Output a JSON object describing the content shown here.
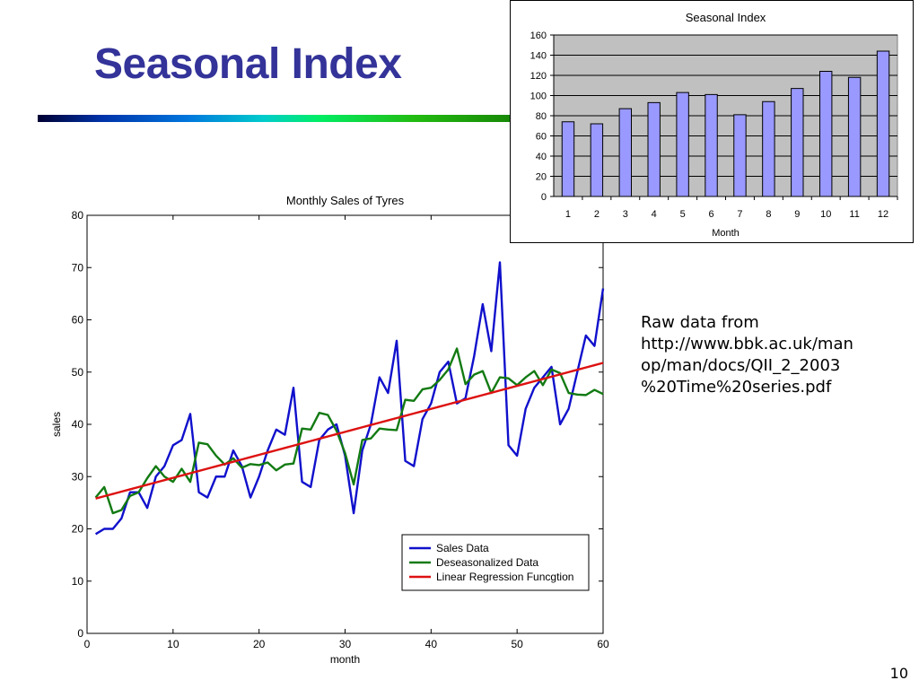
{
  "slide": {
    "title": "Seasonal Index",
    "source_lines": [
      "Raw data from",
      "http://www.bbk.ac.uk/man",
      "op/man/docs/QII_2_2003",
      "%20Time%20series.pdf"
    ],
    "page_number": "10"
  },
  "chart_data": [
    {
      "type": "line",
      "title": "Monthly Sales of Tyres",
      "xlabel": "month",
      "ylabel": "sales",
      "xlim": [
        0,
        60
      ],
      "ylim": [
        0,
        80
      ],
      "xticks": [
        0,
        10,
        20,
        30,
        40,
        50,
        60
      ],
      "yticks": [
        0,
        10,
        20,
        30,
        40,
        50,
        60,
        70,
        80
      ],
      "grid": false,
      "legend_position": "bottom-right",
      "x": [
        1,
        2,
        3,
        4,
        5,
        6,
        7,
        8,
        9,
        10,
        11,
        12,
        13,
        14,
        15,
        16,
        17,
        18,
        19,
        20,
        21,
        22,
        23,
        24,
        25,
        26,
        27,
        28,
        29,
        30,
        31,
        32,
        33,
        34,
        35,
        36,
        37,
        38,
        39,
        40,
        41,
        42,
        43,
        44,
        45,
        46,
        47,
        48,
        49,
        50,
        51,
        52,
        53,
        54,
        55,
        56,
        57,
        58,
        59,
        60
      ],
      "series": [
        {
          "name": "Sales Data",
          "color": "#1010cc",
          "values": [
            19,
            20,
            20,
            22,
            27,
            27,
            24,
            30,
            32,
            36,
            37,
            42,
            27,
            26,
            30,
            30,
            35,
            32,
            26,
            30,
            35,
            39,
            38,
            47,
            29,
            28,
            37,
            39,
            40,
            34,
            23,
            35,
            40,
            49,
            46,
            56,
            33,
            32,
            41,
            44,
            50,
            52,
            44,
            45,
            53,
            63,
            54,
            71,
            36,
            34,
            43,
            47,
            49,
            51,
            40,
            43,
            50,
            57,
            55,
            66
          ]
        },
        {
          "name": "Deseasonalized Data",
          "color": "#127a12",
          "values": [
            26,
            28,
            23,
            23.6,
            26.3,
            27,
            29.7,
            32,
            30,
            29,
            31.5,
            29,
            36.5,
            36.2,
            34,
            32.3,
            33.5,
            31.7,
            32.4,
            32.2,
            32.7,
            31.2,
            32.3,
            32.5,
            39.2,
            39,
            42.2,
            41.8,
            38.8,
            34.5,
            28.5,
            37,
            37.3,
            39.2,
            39,
            38.9,
            44.7,
            44.5,
            46.7,
            47,
            48.5,
            50.5,
            54.5,
            47.7,
            49.5,
            50.2,
            46,
            49,
            48.8,
            47.5,
            49,
            50.2,
            47.5,
            50.5,
            49.8,
            46,
            45.7,
            45.6,
            46.6,
            45.8
          ]
        },
        {
          "name": "Linear Regression Funcgtion",
          "color": "#dd1111",
          "values": [
            25.8,
            26.24,
            26.68,
            27.12,
            27.56,
            28.0,
            28.44,
            28.88,
            29.32,
            29.76,
            30.2,
            30.64,
            31.08,
            31.52,
            31.96,
            32.4,
            32.84,
            33.28,
            33.72,
            34.16,
            34.6,
            35.04,
            35.48,
            35.92,
            36.36,
            36.8,
            37.24,
            37.68,
            38.12,
            38.56,
            39.0,
            39.44,
            39.88,
            40.32,
            40.76,
            41.2,
            41.64,
            42.08,
            42.52,
            42.96,
            43.4,
            43.84,
            44.28,
            44.72,
            45.16,
            45.6,
            46.04,
            46.48,
            46.92,
            47.36,
            47.8,
            48.24,
            48.68,
            49.12,
            49.56,
            50.0,
            50.44,
            50.88,
            51.32,
            51.76
          ]
        }
      ]
    },
    {
      "type": "bar",
      "title": "Seasonal Index",
      "xlabel": "Month",
      "ylabel": "",
      "ylim": [
        0,
        160
      ],
      "yticks": [
        0,
        20,
        40,
        60,
        80,
        100,
        120,
        140,
        160
      ],
      "grid": true,
      "plot_background": "#c0c0c0",
      "bar_color": "#9999ff",
      "categories": [
        "1",
        "2",
        "3",
        "4",
        "5",
        "6",
        "7",
        "8",
        "9",
        "10",
        "11",
        "12"
      ],
      "values": [
        74,
        72,
        87,
        93,
        103,
        101,
        81,
        94,
        107,
        124,
        118,
        144
      ]
    }
  ]
}
